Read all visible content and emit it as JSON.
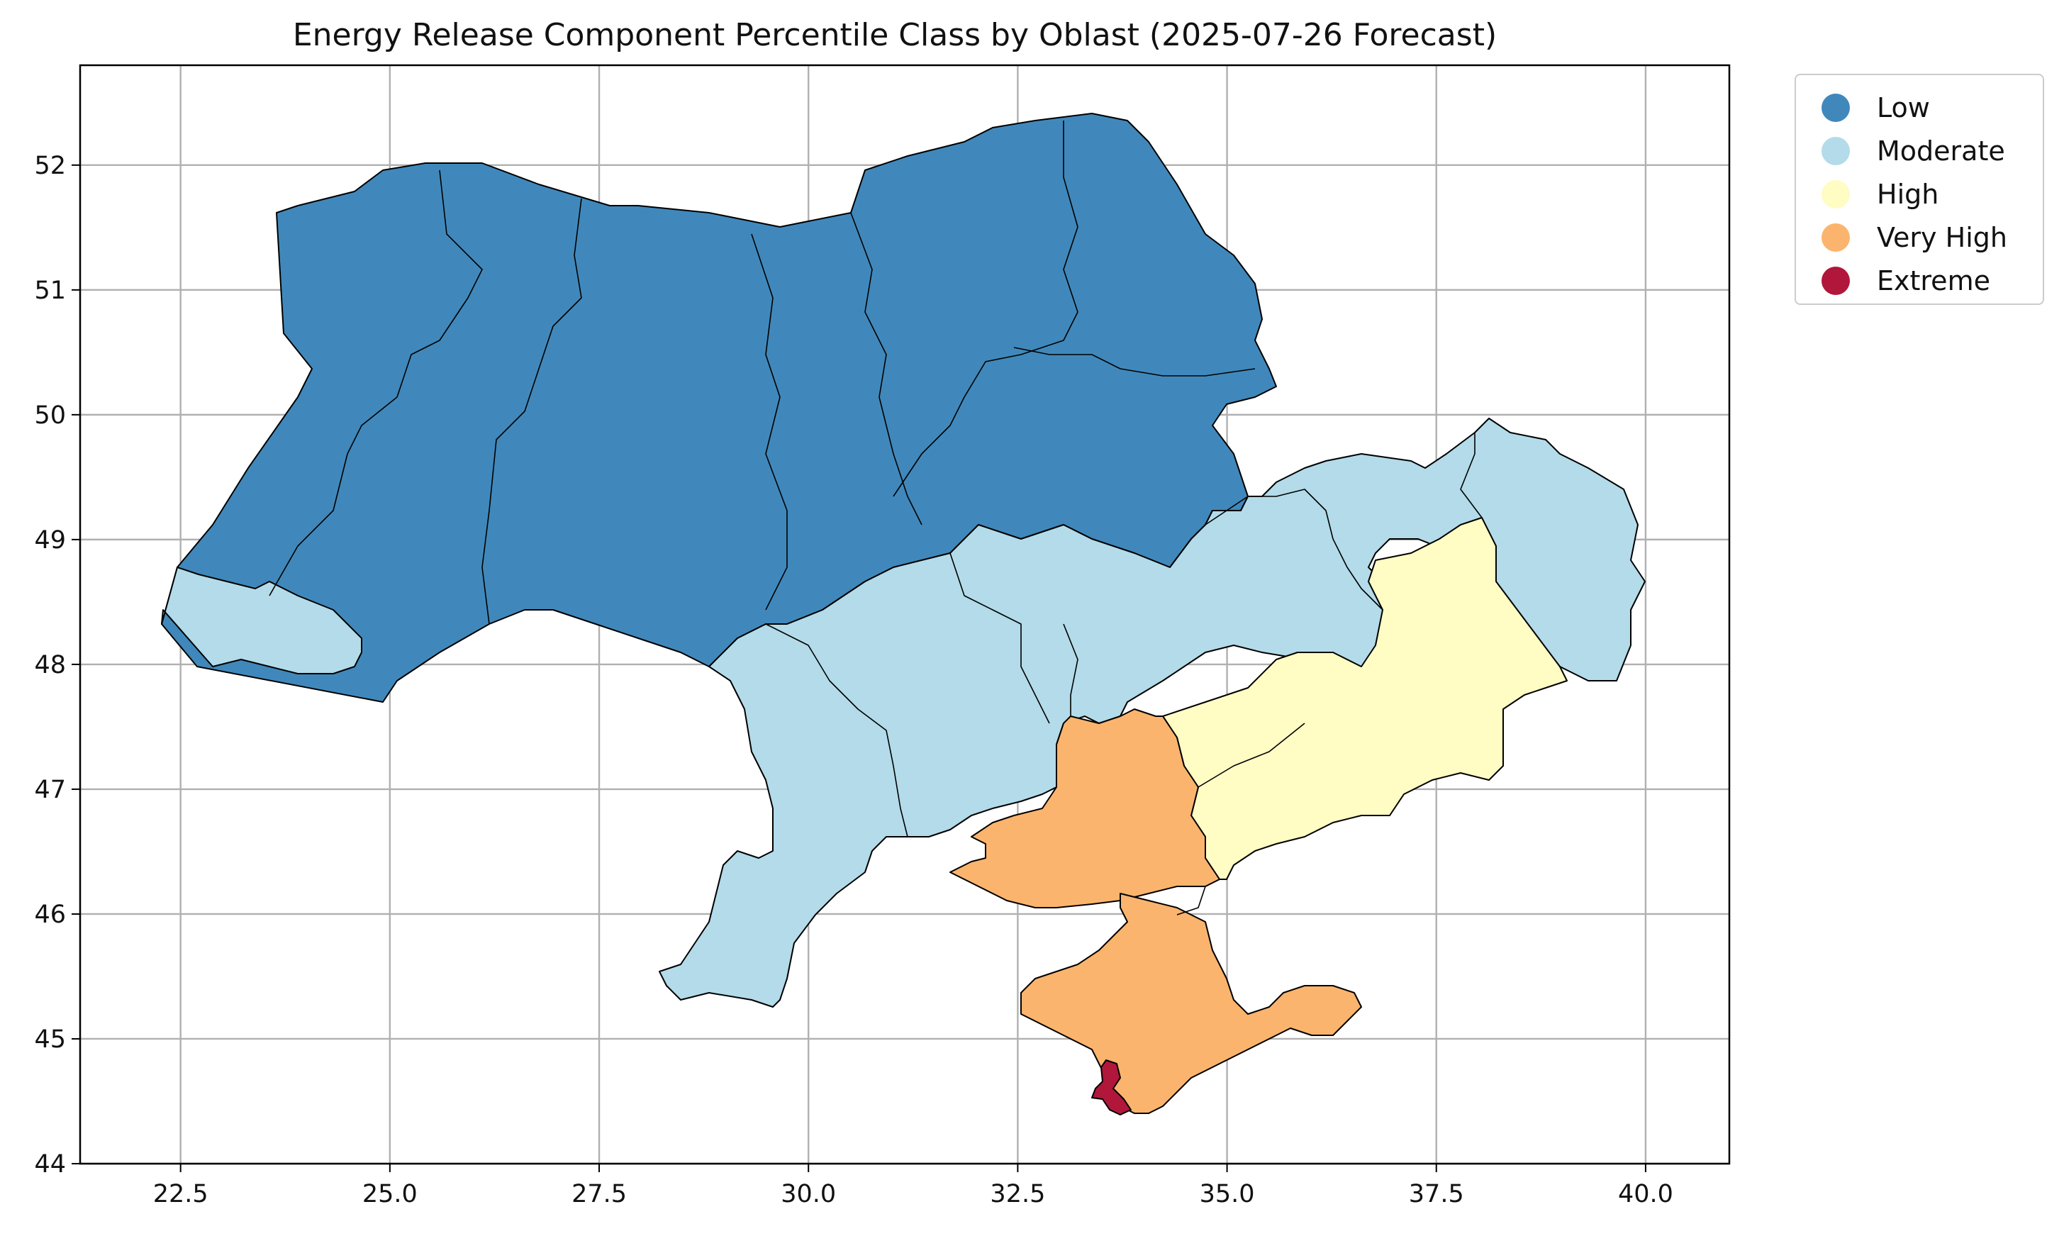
{
  "title": "Energy Release Component Percentile Class by Oblast (2025-07-26 Forecast)",
  "colors": {
    "Low": "#4088bb",
    "Moderate": "#b3dbe9",
    "High": "#fffcc4",
    "Very High": "#fbb46d",
    "Extreme": "#b0173b"
  },
  "legend": [
    {
      "label": "Low",
      "color": "#4088bb"
    },
    {
      "label": "Moderate",
      "color": "#b3dbe9"
    },
    {
      "label": "High",
      "color": "#fffcc4"
    },
    {
      "label": "Very High",
      "color": "#fbb46d"
    },
    {
      "label": "Extreme",
      "color": "#b0173b"
    }
  ],
  "chart_data": {
    "type": "choropleth",
    "xlim": [
      21.3,
      41.0
    ],
    "ylim": [
      44.0,
      52.8
    ],
    "grid": true,
    "legend_position": "outside upper right",
    "x_ticks": [
      "22.5",
      "25.0",
      "27.5",
      "30.0",
      "32.5",
      "35.0",
      "37.5",
      "40.0"
    ],
    "x_tick_values": [
      22.5,
      25.0,
      27.5,
      30.0,
      32.5,
      35.0,
      37.5,
      40.0
    ],
    "y_ticks": [
      "44",
      "45",
      "46",
      "47",
      "48",
      "49",
      "50",
      "51",
      "52"
    ],
    "y_tick_values": [
      44,
      45,
      46,
      47,
      48,
      49,
      50,
      51,
      52
    ]
  }
}
